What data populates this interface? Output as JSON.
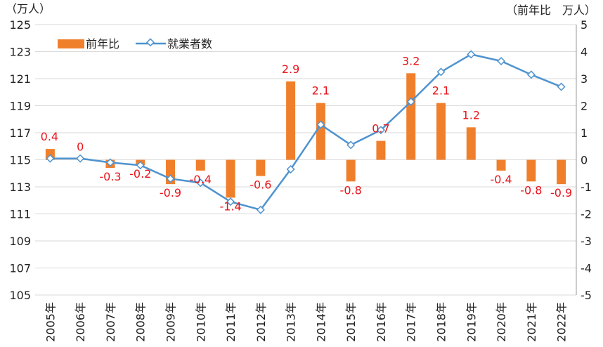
{
  "chart_data": {
    "type": "bar+line",
    "units": {
      "left": "（万人）",
      "right": "（前年比　万人）"
    },
    "categories": [
      "2005年",
      "2006年",
      "2007年",
      "2008年",
      "2009年",
      "2010年",
      "2011年",
      "2012年",
      "2013年",
      "2014年",
      "2015年",
      "2016年",
      "2017年",
      "2018年",
      "2019年",
      "2020年",
      "2021年",
      "2022年"
    ],
    "series": [
      {
        "name": "前年比",
        "type": "bar",
        "axis": "right",
        "values": [
          0.4,
          0,
          -0.3,
          -0.2,
          -0.9,
          -0.4,
          -1.4,
          -0.6,
          2.9,
          2.1,
          -0.8,
          0.7,
          3.2,
          2.1,
          1.2,
          -0.4,
          -0.8,
          -0.9
        ],
        "data_labels": [
          "0.4",
          "0",
          "-0.3",
          "-0.2",
          "-0.9",
          "-0.4",
          "-1.4",
          "-0.6",
          "2.9",
          "2.1",
          "-0.8",
          "0.7",
          "3.2",
          "2.1",
          "1.2",
          "-0.4",
          "-0.8",
          "-0.9"
        ]
      },
      {
        "name": "就業者数",
        "type": "line",
        "axis": "left",
        "values": [
          115.1,
          115.1,
          114.8,
          114.6,
          113.6,
          113.3,
          111.9,
          111.3,
          114.3,
          117.6,
          116.1,
          117.2,
          119.3,
          121.5,
          122.8,
          122.3,
          121.3,
          120.4
        ]
      }
    ],
    "left_axis": {
      "min": 105,
      "max": 125,
      "step": 2,
      "ticks": [
        "105",
        "107",
        "109",
        "111",
        "113",
        "115",
        "117",
        "119",
        "121",
        "123",
        "125"
      ]
    },
    "right_axis": {
      "min": -5,
      "max": 5,
      "step": 1,
      "ticks": [
        "-5",
        "-4",
        "-3",
        "-2",
        "-1",
        "0",
        "1",
        "2",
        "3",
        "4",
        "5"
      ]
    },
    "grid": true,
    "legend_position": "top-left",
    "colors": {
      "bar": "#f07f2c",
      "line": "#4f93cf",
      "label": "#e8141b",
      "grid": "#d9d9d9"
    }
  }
}
